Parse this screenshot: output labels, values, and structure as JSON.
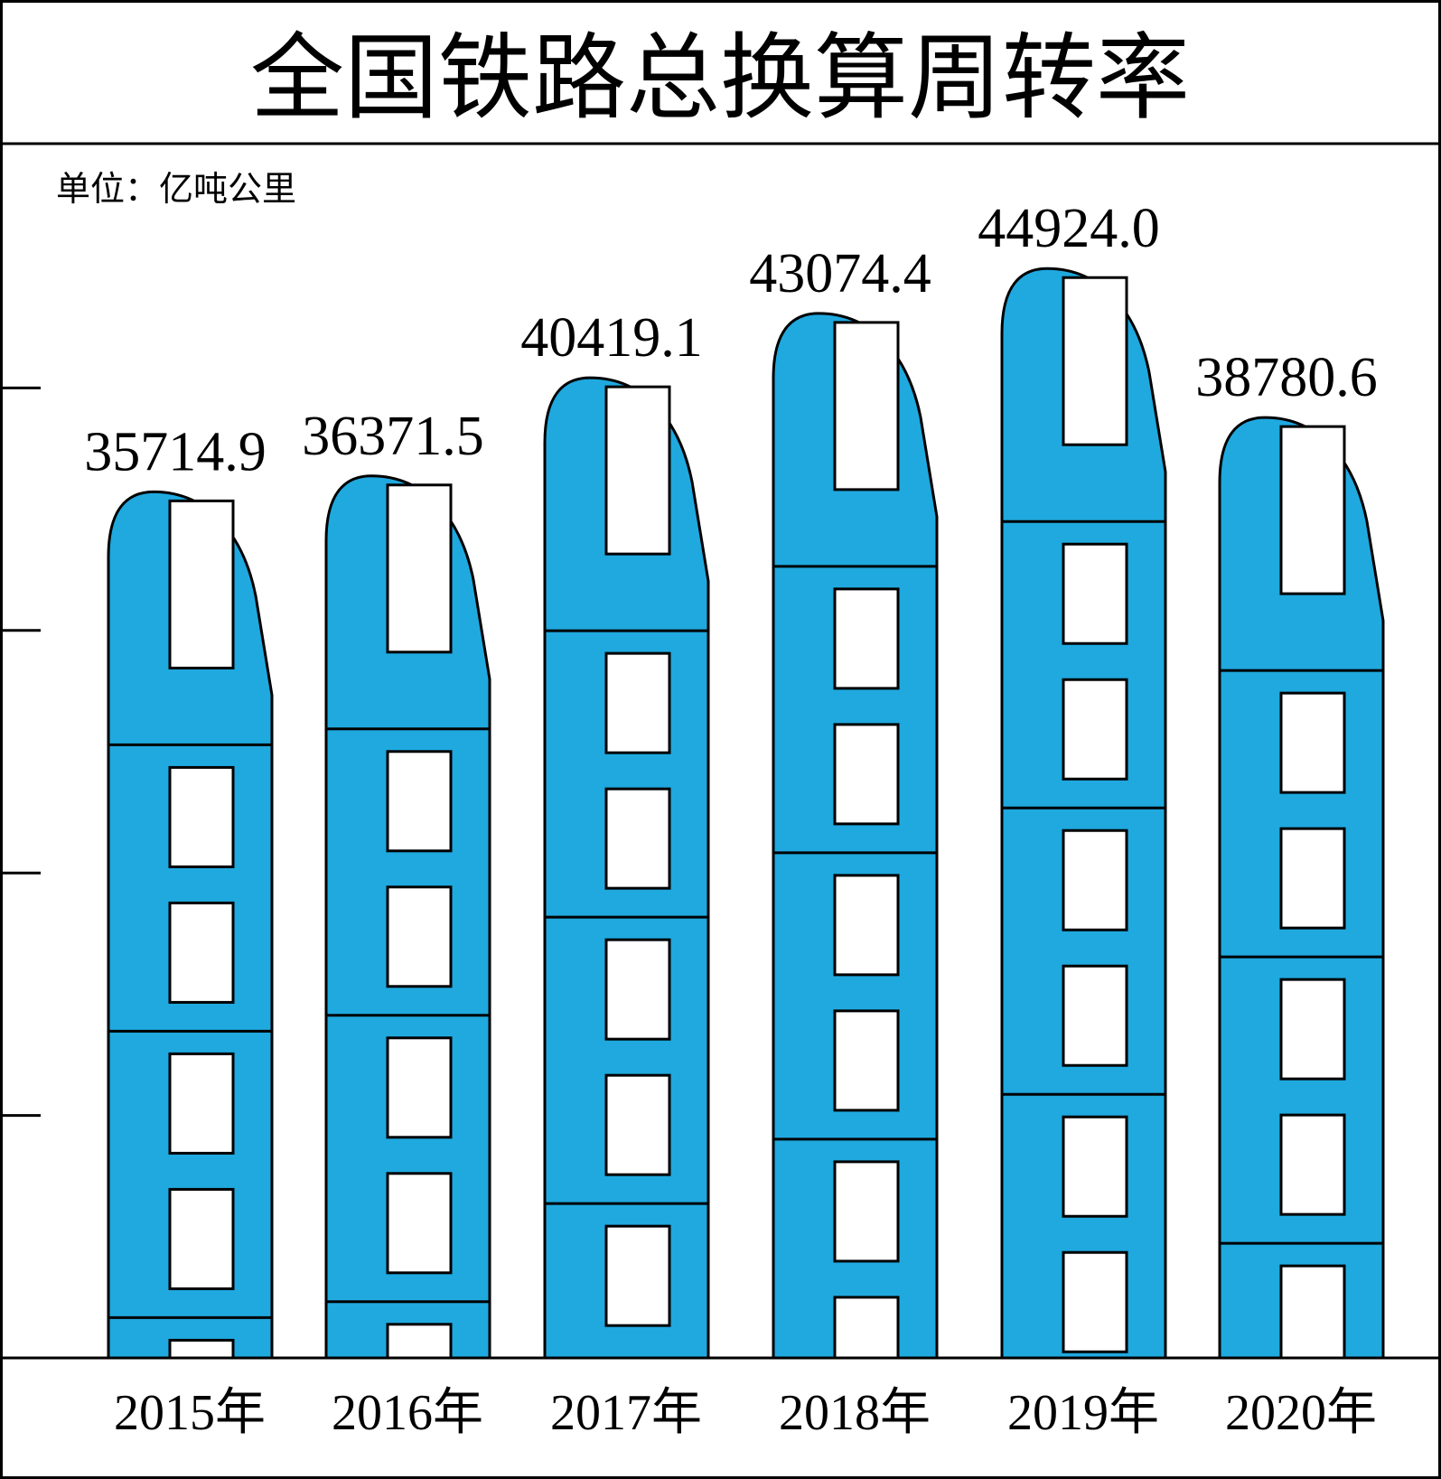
{
  "chart_data": {
    "type": "bar",
    "title": "全国铁路总换算周转率",
    "unit_label": "单位：亿吨公里",
    "categories": [
      "2015年",
      "2016年",
      "2017年",
      "2018年",
      "2019年",
      "2020年"
    ],
    "values": [
      35714.9,
      36371.5,
      40419.1,
      43074.4,
      44924.0,
      38780.6
    ],
    "value_labels": [
      "35714.9",
      "36371.5",
      "40419.1",
      "43074.4",
      "44924.0",
      "38780.6"
    ],
    "ylim": [
      0,
      50000
    ],
    "grid": false,
    "legend": "none"
  },
  "colors": {
    "bar_fill": "#1fa9df",
    "window_fill": "#ffffff",
    "outline": "#000000"
  },
  "bar_icon": "train-car"
}
